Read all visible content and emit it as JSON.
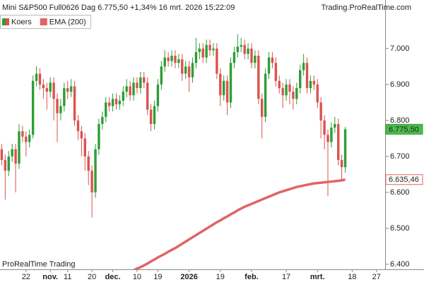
{
  "chart_data": {
    "type": "candlestick",
    "title": "Mini S&P500 Full0626 Dag 6.775,50 +1,34% 16 mrt. 2026 15:22:09",
    "source": "Trading.ProRealTime.com",
    "watermark": "ProRealTime Trading",
    "legend": "top-left",
    "grid": false,
    "categories": [
      null,
      null,
      null,
      null,
      null,
      null,
      null,
      "22",
      null,
      null,
      null,
      null,
      null,
      null,
      "nov.",
      null,
      null,
      null,
      null,
      "11",
      null,
      null,
      null,
      null,
      null,
      null,
      "20",
      null,
      null,
      null,
      null,
      null,
      "dec.",
      null,
      null,
      null,
      null,
      null,
      null,
      "10",
      null,
      null,
      null,
      null,
      null,
      "19",
      null,
      null,
      null,
      null,
      null,
      null,
      null,
      null,
      "2026",
      null,
      null,
      null,
      null,
      null,
      null,
      null,
      null,
      "19",
      null,
      null,
      null,
      null,
      null,
      null,
      null,
      null,
      "feb.",
      null,
      null,
      null,
      null,
      null,
      null,
      null,
      null,
      null,
      "17",
      null,
      null,
      null,
      null,
      null,
      null,
      null,
      null,
      "mrt.",
      null,
      null,
      null,
      null,
      null,
      null,
      null,
      null,
      null,
      "18",
      null,
      null,
      null,
      null,
      null,
      null,
      "27",
      null,
      null
    ],
    "ylim": [
      6386,
      7135
    ],
    "yticks": [
      {
        "value": 6400,
        "label": "6.400"
      },
      {
        "value": 6500,
        "label": "6.500"
      },
      {
        "value": 6600,
        "label": "6.600"
      },
      {
        "value": 6700,
        "label": "6.700"
      },
      {
        "value": 6800,
        "label": "6.800"
      },
      {
        "value": 6900,
        "label": "6.900"
      },
      {
        "value": 7000,
        "label": "7.000"
      }
    ],
    "series": [
      {
        "name": "Koers",
        "type": "candlestick",
        "up_color": "#2e9e35",
        "down_color": "#d9534f",
        "label_color": "#4cbb4c",
        "open": [
          6720,
          6690,
          6660,
          6700,
          6720,
          6680,
          6770,
          6755,
          6740,
          6760,
          6910,
          6930,
          6900,
          6890,
          6880,
          6905,
          6860,
          6820,
          6840,
          6890,
          6880,
          6895,
          6800,
          6770,
          6750,
          6700,
          6660,
          6600,
          6720,
          6790,
          6810,
          6850,
          6840,
          6860,
          6845,
          6855,
          6880,
          6895,
          6870,
          6905,
          6890,
          6920,
          6905,
          6830,
          6790,
          6840,
          6900,
          6950,
          6975,
          6965,
          6980,
          6960,
          6970,
          6930,
          6950,
          6920,
          6960,
          6990,
          7000,
          6975,
          7010,
          6995,
          7000,
          6930,
          6870,
          6910,
          6850,
          6960,
          6990,
          7005,
          7010,
          6985,
          7000,
          6960,
          6980,
          6860,
          6810,
          6930,
          6975,
          6960,
          6910,
          6890,
          6870,
          6900,
          6880,
          6860,
          6890,
          6940,
          6960,
          6890,
          6910,
          6900,
          6850,
          6800,
          6760,
          6740,
          6780,
          6790,
          6690,
          6670,
          null,
          null,
          null,
          null,
          null,
          null,
          null,
          null,
          null,
          null,
          null
        ],
        "high": [
          6735,
          6705,
          6715,
          6735,
          6735,
          6790,
          6785,
          6770,
          6775,
          6925,
          6950,
          6945,
          6915,
          6905,
          6920,
          6920,
          6875,
          6860,
          6905,
          6910,
          6915,
          6910,
          6815,
          6785,
          6765,
          6715,
          6675,
          6735,
          6805,
          6825,
          6865,
          6865,
          6875,
          6875,
          6870,
          6895,
          6915,
          6910,
          6920,
          6920,
          6935,
          6935,
          6920,
          6845,
          6855,
          6915,
          6965,
          6995,
          6990,
          6995,
          6995,
          6985,
          6985,
          6965,
          6965,
          6975,
          7030,
          7015,
          7015,
          7025,
          7025,
          7015,
          7015,
          6945,
          6925,
          6925,
          6975,
          7005,
          7040,
          7030,
          7025,
          7015,
          7015,
          6995,
          6995,
          6875,
          6945,
          6990,
          6990,
          6975,
          6925,
          6905,
          6915,
          6915,
          6895,
          6905,
          6955,
          6985,
          6975,
          6925,
          6925,
          6915,
          6865,
          6815,
          6775,
          6795,
          6810,
          6805,
          6705,
          6782,
          null,
          null,
          null,
          null,
          null,
          null,
          null,
          null,
          null,
          null,
          null
        ],
        "low": [
          6675,
          6580,
          6645,
          6685,
          6600,
          6665,
          6740,
          6700,
          6725,
          6750,
          6895,
          6885,
          6860,
          6830,
          6865,
          6800,
          6740,
          6800,
          6825,
          6860,
          6865,
          6785,
          6745,
          6700,
          6660,
          6620,
          6530,
          6585,
          6705,
          6775,
          6795,
          6825,
          6825,
          6830,
          6830,
          6840,
          6865,
          6855,
          6855,
          6875,
          6875,
          6890,
          6815,
          6770,
          6775,
          6825,
          6885,
          6935,
          6950,
          6950,
          6945,
          6945,
          6910,
          6915,
          6880,
          6905,
          6945,
          6970,
          6960,
          6960,
          6980,
          6980,
          6915,
          6840,
          6855,
          6815,
          6835,
          6945,
          6975,
          6990,
          6970,
          6970,
          6945,
          6945,
          6845,
          6750,
          6795,
          6915,
          6945,
          6895,
          6875,
          6835,
          6855,
          6845,
          6830,
          6845,
          6875,
          6925,
          6875,
          6875,
          6885,
          6835,
          6750,
          6720,
          6590,
          6725,
          6765,
          6675,
          6637,
          6655,
          null,
          null,
          null,
          null,
          null,
          null,
          null,
          null,
          null,
          null,
          null
        ],
        "close": [
          6690,
          6660,
          6700,
          6720,
          6680,
          6770,
          6755,
          6740,
          6760,
          6910,
          6930,
          6900,
          6890,
          6880,
          6905,
          6860,
          6820,
          6840,
          6890,
          6880,
          6895,
          6800,
          6770,
          6750,
          6700,
          6660,
          6600,
          6720,
          6790,
          6810,
          6850,
          6840,
          6860,
          6845,
          6855,
          6880,
          6895,
          6870,
          6905,
          6890,
          6920,
          6905,
          6830,
          6790,
          6840,
          6900,
          6950,
          6975,
          6965,
          6980,
          6960,
          6970,
          6930,
          6950,
          6920,
          6960,
          6990,
          7000,
          6975,
          7010,
          6995,
          7000,
          6930,
          6870,
          6910,
          6850,
          6960,
          6990,
          7005,
          7010,
          6985,
          7000,
          6960,
          6980,
          6860,
          6810,
          6930,
          6975,
          6960,
          6910,
          6890,
          6870,
          6900,
          6880,
          6860,
          6890,
          6940,
          6960,
          6890,
          6910,
          6900,
          6850,
          6800,
          6760,
          6740,
          6780,
          6790,
          6690,
          6670,
          6775.5,
          null,
          null,
          null,
          null,
          null,
          null,
          null,
          null,
          null,
          null,
          null
        ],
        "value_labels": [
          null,
          null,
          null,
          null,
          null,
          null,
          null,
          null,
          null,
          null,
          null,
          null,
          null,
          null,
          null,
          null,
          null,
          null,
          null,
          null,
          null,
          null,
          null,
          null,
          null,
          null,
          null,
          null,
          null,
          null,
          null,
          null,
          null,
          null,
          null,
          null,
          null,
          null,
          null,
          null,
          null,
          null,
          null,
          null,
          null,
          null,
          null,
          null,
          null,
          null,
          null,
          null,
          null,
          null,
          null,
          null,
          null,
          null,
          null,
          null,
          null,
          null,
          null,
          null,
          null,
          null,
          null,
          null,
          null,
          null,
          null,
          null,
          null,
          null,
          null,
          null,
          null,
          null,
          null,
          null,
          null,
          null,
          null,
          null,
          null,
          null,
          null,
          null,
          null,
          null,
          null,
          null,
          null,
          null,
          null,
          null,
          null,
          null,
          null,
          "6.775,50",
          null,
          null,
          null,
          null,
          null,
          null,
          null,
          null,
          null,
          null,
          null
        ]
      },
      {
        "name": "EMA (200)",
        "type": "line",
        "color": "#e06464",
        "label_color": "#ffffff",
        "values": [
          null,
          null,
          null,
          null,
          null,
          null,
          null,
          null,
          null,
          null,
          null,
          null,
          null,
          null,
          null,
          null,
          null,
          null,
          null,
          null,
          null,
          null,
          null,
          null,
          null,
          null,
          null,
          null,
          null,
          null,
          null,
          null,
          null,
          null,
          null,
          null,
          null,
          null,
          6383,
          6388,
          6392,
          6397,
          6402,
          6408,
          6413,
          6419,
          6424,
          6429,
          6435,
          6440,
          6445,
          6451,
          6457,
          6463,
          6469,
          6475,
          6481,
          6487,
          6493,
          6499,
          6505,
          6511,
          6517,
          6522,
          6528,
          6533,
          6539,
          6544,
          6550,
          6555,
          6560,
          6564,
          6568,
          6572,
          6576,
          6580,
          6584,
          6588,
          6592,
          6596,
          6600,
          6603,
          6606,
          6609,
          6612,
          6615,
          6617,
          6619,
          6621,
          6623,
          6625,
          6626,
          6627,
          6628,
          6629,
          6630,
          6631,
          6632,
          6633.5,
          6635.46,
          null,
          null,
          null,
          null,
          null,
          null,
          null,
          null,
          null,
          null,
          null
        ],
        "value_labels": [
          null,
          null,
          null,
          null,
          null,
          null,
          null,
          null,
          null,
          null,
          null,
          null,
          null,
          null,
          null,
          null,
          null,
          null,
          null,
          null,
          null,
          null,
          null,
          null,
          null,
          null,
          null,
          null,
          null,
          null,
          null,
          null,
          null,
          null,
          null,
          null,
          null,
          null,
          null,
          null,
          null,
          null,
          null,
          null,
          null,
          null,
          null,
          null,
          null,
          null,
          null,
          null,
          null,
          null,
          null,
          null,
          null,
          null,
          null,
          null,
          null,
          null,
          null,
          null,
          null,
          null,
          null,
          null,
          null,
          null,
          null,
          null,
          null,
          null,
          null,
          null,
          null,
          null,
          null,
          null,
          null,
          null,
          null,
          null,
          null,
          null,
          null,
          null,
          null,
          null,
          null,
          null,
          null,
          null,
          null,
          null,
          null,
          null,
          null,
          "6.635,46",
          null,
          null,
          null,
          null,
          null,
          null,
          null,
          null,
          null,
          null,
          null
        ]
      }
    ]
  }
}
